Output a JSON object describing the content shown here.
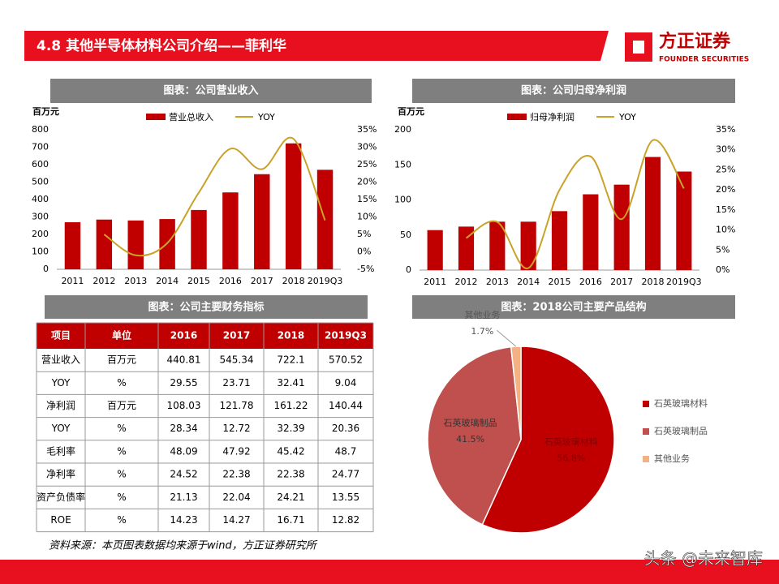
{
  "header": {
    "title": "4.8 其他半导体材料公司介绍——菲利华",
    "logo": "方正证券",
    "logo_en": "FOUNDER SECURITIES"
  },
  "chart_data": [
    {
      "type": "bar",
      "title": "图表：公司营业收入",
      "y_label": "百万元",
      "categories": [
        "2011",
        "2012",
        "2013",
        "2014",
        "2015",
        "2016",
        "2017",
        "2018",
        "2019Q3"
      ],
      "series": [
        {
          "name": "营业总收入",
          "color": "#c00000",
          "values": [
            270,
            285,
            280,
            288,
            340,
            440.81,
            545.34,
            722.1,
            570.52
          ]
        },
        {
          "name": "YOY",
          "color": "#c9a227",
          "type": "line",
          "axis": "y2",
          "values": [
            null,
            5,
            -1,
            2.5,
            17,
            29.55,
            23.71,
            32.41,
            9.04
          ]
        }
      ],
      "ylim": [
        0,
        800
      ],
      "yticks": [
        0,
        100,
        200,
        300,
        400,
        500,
        600,
        700,
        800
      ],
      "y2lim": [
        -5,
        35
      ],
      "y2ticks": [
        {
          "value": -5,
          "label": "-5%"
        },
        {
          "value": 0,
          "label": "0%"
        },
        {
          "value": 5,
          "label": "5%"
        },
        {
          "value": 10,
          "label": "10%"
        },
        {
          "value": 15,
          "label": "15%"
        },
        {
          "value": 20,
          "label": "20%"
        },
        {
          "value": 25,
          "label": "25%"
        },
        {
          "value": 30,
          "label": "30%"
        },
        {
          "value": 35,
          "label": "35%"
        }
      ]
    },
    {
      "type": "bar",
      "title": "图表：公司归母净利润",
      "y_label": "百万元",
      "categories": [
        "2011",
        "2012",
        "2013",
        "2014",
        "2015",
        "2016",
        "2017",
        "2018",
        "2019Q3"
      ],
      "series": [
        {
          "name": "归母净利润",
          "color": "#c00000",
          "values": [
            57,
            62,
            69,
            69,
            84,
            108.03,
            121.78,
            161.22,
            140.44
          ]
        },
        {
          "name": "YOY",
          "color": "#c9a227",
          "type": "line",
          "axis": "y2",
          "values": [
            null,
            8,
            12,
            0.5,
            20,
            28.34,
            12.72,
            32.39,
            20.36
          ]
        }
      ],
      "ylim": [
        0,
        200
      ],
      "yticks": [
        0,
        50,
        100,
        150,
        200
      ],
      "y2lim": [
        0,
        35
      ],
      "y2ticks": [
        {
          "value": 0,
          "label": "0%"
        },
        {
          "value": 5,
          "label": "5%"
        },
        {
          "value": 10,
          "label": "10%"
        },
        {
          "value": 15,
          "label": "15%"
        },
        {
          "value": 20,
          "label": "20%"
        },
        {
          "value": 25,
          "label": "25%"
        },
        {
          "value": 30,
          "label": "30%"
        },
        {
          "value": 35,
          "label": "35%"
        }
      ]
    },
    {
      "type": "pie",
      "title": "图表：2018公司主要产品结构",
      "categories": [
        "石英玻璃材料",
        "石英玻璃制品",
        "其他业务"
      ],
      "values": [
        56.8,
        41.5,
        1.7
      ],
      "value_labels": [
        "56.8%",
        "41.5%",
        "1.7%"
      ],
      "colors": [
        "#c00000",
        "#c0504d",
        "#f4b183"
      ],
      "legend": "right"
    }
  ],
  "table": {
    "title": "图表：公司主要财务指标",
    "header": [
      "项目",
      "单位",
      "2016",
      "2017",
      "2018",
      "2019Q3"
    ],
    "rows": [
      [
        "营业收入",
        "百万元",
        "440.81",
        "545.34",
        "722.1",
        "570.52"
      ],
      [
        "YOY",
        "%",
        "29.55",
        "23.71",
        "32.41",
        "9.04"
      ],
      [
        "净利润",
        "百万元",
        "108.03",
        "121.78",
        "161.22",
        "140.44"
      ],
      [
        "YOY",
        "%",
        "28.34",
        "12.72",
        "32.39",
        "20.36"
      ],
      [
        "毛利率",
        "%",
        "48.09",
        "47.92",
        "45.42",
        "48.7"
      ],
      [
        "净利率",
        "%",
        "24.52",
        "22.38",
        "22.38",
        "24.77"
      ],
      [
        "资产负债率",
        "%",
        "21.13",
        "22.04",
        "24.21",
        "13.55"
      ],
      [
        "ROE",
        "%",
        "14.23",
        "14.27",
        "16.71",
        "12.82"
      ]
    ]
  },
  "source": "资料来源：本页图表数据均来源于wind，方正证券研究所",
  "watermark": "头条 @未来智库"
}
